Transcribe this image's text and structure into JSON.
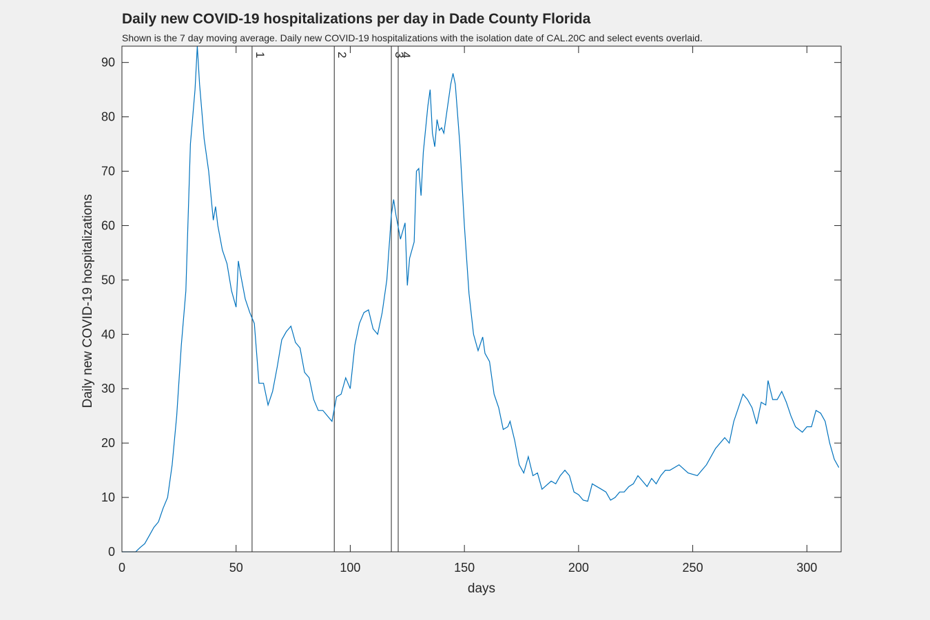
{
  "chart_data": {
    "type": "line",
    "title": "Daily new COVID-19 hospitalizations per day in Dade County Florida",
    "subtitle": "Shown is the 7 day moving average. Daily new COVID-19 hospitalizations with the isolation date of CAL.20C and select events overlaid.",
    "xlabel": "days",
    "ylabel": "Daily new COVID-19 hospitalizations",
    "xlim": [
      0,
      315
    ],
    "ylim": [
      0,
      93
    ],
    "xticks": [
      0,
      50,
      100,
      150,
      200,
      250,
      300
    ],
    "yticks": [
      0,
      10,
      20,
      30,
      40,
      50,
      60,
      70,
      80,
      90
    ],
    "color": "#0072bd",
    "events": [
      {
        "x": 57,
        "label": "1"
      },
      {
        "x": 93,
        "label": "2"
      },
      {
        "x": 118,
        "label": "3"
      },
      {
        "x": 121,
        "label": "4"
      }
    ],
    "x": [
      0,
      2,
      4,
      6,
      8,
      10,
      12,
      14,
      16,
      18,
      20,
      22,
      24,
      26,
      28,
      30,
      32,
      33,
      34,
      36,
      38,
      40,
      41,
      42,
      44,
      46,
      48,
      50,
      51,
      52,
      54,
      56,
      58,
      60,
      62,
      64,
      66,
      68,
      70,
      72,
      74,
      76,
      78,
      80,
      82,
      84,
      86,
      88,
      90,
      92,
      94,
      96,
      98,
      100,
      102,
      104,
      106,
      108,
      110,
      112,
      114,
      116,
      118,
      119,
      120,
      122,
      124,
      125,
      126,
      128,
      129,
      130,
      131,
      132,
      134,
      135,
      136,
      137,
      138,
      139,
      140,
      141,
      142,
      144,
      145,
      146,
      148,
      150,
      152,
      154,
      156,
      158,
      159,
      161,
      163,
      165,
      167,
      169,
      170,
      172,
      174,
      176,
      178,
      180,
      182,
      184,
      188,
      190,
      192,
      194,
      196,
      198,
      200,
      202,
      204,
      206,
      208,
      210,
      212,
      214,
      216,
      218,
      220,
      222,
      224,
      226,
      228,
      230,
      232,
      234,
      236,
      238,
      240,
      244,
      248,
      252,
      256,
      260,
      264,
      266,
      268,
      270,
      272,
      274,
      276,
      278,
      280,
      282,
      283,
      285,
      287,
      289,
      291,
      293,
      295,
      298,
      300,
      302,
      304,
      306,
      308,
      310,
      312,
      314
    ],
    "values": [
      0,
      0,
      0,
      0,
      0.8,
      1.5,
      3,
      4.5,
      5.5,
      8,
      10,
      16,
      25,
      38,
      48,
      75,
      85,
      93,
      86,
      76,
      70,
      61,
      63.5,
      60,
      55.5,
      53,
      48,
      45,
      53.5,
      51,
      46.5,
      44,
      42,
      31,
      31,
      27,
      29.5,
      34,
      39,
      40.5,
      41.5,
      38.5,
      37.5,
      33,
      32,
      28,
      26,
      26,
      25,
      24,
      28.5,
      29,
      32,
      30,
      38,
      42,
      44,
      44.5,
      41,
      40,
      44,
      50,
      62,
      64.8,
      62,
      57.5,
      60.5,
      49,
      54,
      57,
      70,
      70.5,
      65.5,
      73.5,
      82,
      85,
      77,
      74.5,
      79.5,
      77.5,
      78,
      77,
      80,
      86,
      88,
      86,
      75,
      60,
      47.5,
      40,
      37,
      39.5,
      36.5,
      35,
      29,
      26.5,
      22.5,
      23,
      24,
      20.5,
      16,
      14.5,
      17.5,
      14,
      14.5,
      11.5,
      13,
      12.5,
      14,
      15,
      14,
      11,
      10.5,
      9.5,
      9.3,
      12.5,
      12,
      11.5,
      11,
      9.5,
      10,
      11,
      11,
      12,
      12.5,
      14,
      13,
      12,
      13.5,
      12.5,
      14,
      15,
      15,
      16,
      14.5,
      14,
      16,
      19,
      21,
      20,
      24,
      26.5,
      29,
      28,
      26.5,
      23.5,
      27.5,
      27,
      31.5,
      28,
      28,
      29.5,
      27.5,
      25,
      23,
      22,
      23,
      23,
      26,
      25.5,
      24,
      20,
      17,
      15.5
    ]
  }
}
